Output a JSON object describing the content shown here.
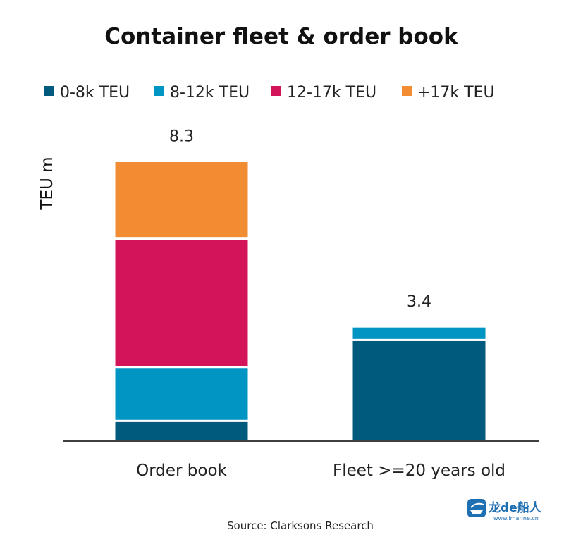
{
  "chart_data": {
    "type": "bar",
    "stacked": true,
    "title": "Container fleet & order book",
    "ylabel": "TEU m",
    "xlabel": "",
    "categories": [
      "Order book",
      "Fleet >=20 years old"
    ],
    "series": [
      {
        "name": "0-8k TEU",
        "color": "#005a7e",
        "values": [
          0.6,
          3.0
        ]
      },
      {
        "name": "8-12k TEU",
        "color": "#0095c3",
        "values": [
          1.6,
          0.4
        ]
      },
      {
        "name": "12-17k TEU",
        "color": "#d4145a",
        "values": [
          3.8,
          0.0
        ]
      },
      {
        "name": "+17k TEU",
        "color": "#f28c33",
        "values": [
          2.3,
          0.0
        ]
      }
    ],
    "totals": [
      "8.3",
      "3.4"
    ],
    "ylim": [
      0,
      9.0
    ],
    "grid": false,
    "legend_position": "top"
  },
  "source": "Source: Clarksons Research",
  "watermark": {
    "text": "龙de船人",
    "url_text": "www.imarine.cn",
    "icon": "ship-logo-icon"
  }
}
